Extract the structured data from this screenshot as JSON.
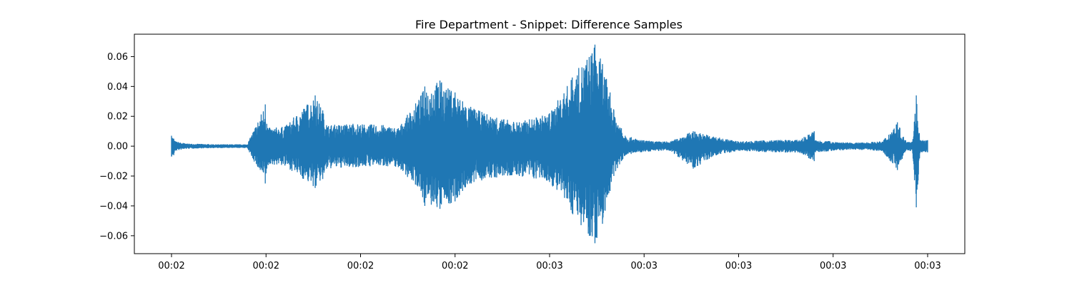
{
  "chart_data": {
    "type": "line",
    "title": "Fire Department - Snippet: Difference Samples",
    "xlabel": "",
    "ylabel": "",
    "ylim": [
      -0.072,
      0.075
    ],
    "yticks": [
      -0.06,
      -0.04,
      -0.02,
      0.0,
      0.02,
      0.04,
      0.06
    ],
    "ytick_labels": [
      "−0.06",
      "−0.04",
      "−0.02",
      "0.00",
      "0.02",
      "0.04",
      "0.06"
    ],
    "xticks": [
      "00:02",
      "00:02",
      "00:02",
      "00:02",
      "00:03",
      "00:03",
      "00:03",
      "00:03",
      "00:03"
    ],
    "grid": false,
    "series_color": "#1f77b4",
    "series": [
      {
        "x_fraction": [
          0.0,
          0.003,
          0.005,
          0.02,
          0.06,
          0.1,
          0.124,
          0.126,
          0.13,
          0.15,
          0.19,
          0.2,
          0.205,
          0.24,
          0.28,
          0.3,
          0.33,
          0.335,
          0.355,
          0.37,
          0.375,
          0.385,
          0.4,
          0.43,
          0.46,
          0.5,
          0.53,
          0.56,
          0.57,
          0.58,
          0.585,
          0.595,
          0.6,
          0.62,
          0.64,
          0.66,
          0.69,
          0.72,
          0.74,
          0.74,
          0.75,
          0.8,
          0.83,
          0.85,
          0.85,
          0.9,
          0.94,
          0.96,
          0.97,
          0.98,
          0.985,
          0.99,
          1.0
        ],
        "y_max": [
          0.007,
          0.005,
          0.003,
          0.0015,
          0.001,
          0.001,
          0.028,
          0.015,
          0.012,
          0.013,
          0.034,
          0.024,
          0.014,
          0.015,
          0.014,
          0.012,
          0.034,
          0.04,
          0.044,
          0.037,
          0.036,
          0.03,
          0.025,
          0.019,
          0.016,
          0.022,
          0.046,
          0.068,
          0.055,
          0.036,
          0.024,
          0.012,
          0.007,
          0.004,
          0.003,
          0.003,
          0.01,
          0.006,
          0.004,
          0.004,
          0.003,
          0.004,
          0.004,
          0.01,
          0.004,
          0.002,
          0.003,
          0.016,
          0.004,
          0.003,
          0.034,
          0.004,
          0.004
        ],
        "y_min": [
          -0.007,
          -0.006,
          -0.003,
          -0.0015,
          -0.001,
          -0.001,
          -0.025,
          -0.015,
          -0.012,
          -0.013,
          -0.028,
          -0.022,
          -0.015,
          -0.014,
          -0.013,
          -0.014,
          -0.03,
          -0.04,
          -0.042,
          -0.038,
          -0.037,
          -0.03,
          -0.024,
          -0.021,
          -0.02,
          -0.024,
          -0.045,
          -0.065,
          -0.052,
          -0.03,
          -0.02,
          -0.01,
          -0.006,
          -0.004,
          -0.003,
          -0.003,
          -0.015,
          -0.006,
          -0.004,
          -0.004,
          -0.003,
          -0.004,
          -0.004,
          -0.01,
          -0.004,
          -0.002,
          -0.003,
          -0.016,
          -0.004,
          -0.003,
          -0.041,
          -0.004,
          -0.004
        ]
      }
    ]
  }
}
